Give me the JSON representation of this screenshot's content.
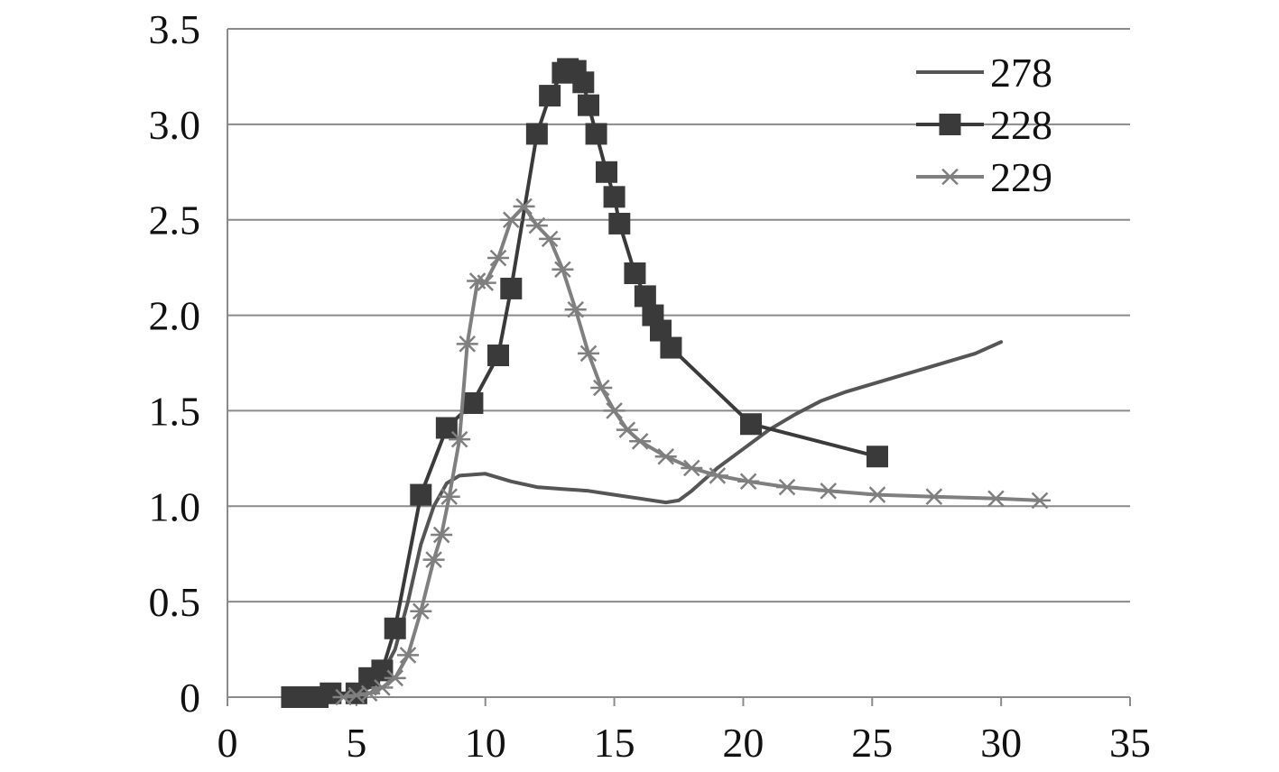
{
  "chart_data": {
    "type": "line",
    "title": "",
    "xlabel": "",
    "ylabel": "",
    "xlim": [
      0,
      35
    ],
    "ylim": [
      0,
      3.5
    ],
    "x_ticks": [
      "0",
      "5",
      "10",
      "15",
      "20",
      "25",
      "30",
      "35"
    ],
    "y_ticks": [
      "0",
      "0.5",
      "1.0",
      "1.5",
      "2.0",
      "2.5",
      "3.0",
      "3.5"
    ],
    "grid": "horizontal",
    "legend_position": "top-right",
    "series": [
      {
        "name": "278",
        "color": "#555555",
        "marker": "none",
        "points": [
          [
            2.5,
            0
          ],
          [
            3.5,
            0
          ],
          [
            4.5,
            0.01
          ],
          [
            5.5,
            0.05
          ],
          [
            6,
            0.12
          ],
          [
            6.5,
            0.25
          ],
          [
            7,
            0.5
          ],
          [
            7.5,
            0.8
          ],
          [
            8,
            1.0
          ],
          [
            8.5,
            1.12
          ],
          [
            9,
            1.16
          ],
          [
            10,
            1.17
          ],
          [
            11,
            1.13
          ],
          [
            12,
            1.1
          ],
          [
            13,
            1.09
          ],
          [
            14,
            1.08
          ],
          [
            15,
            1.06
          ],
          [
            16,
            1.04
          ],
          [
            17,
            1.02
          ],
          [
            17.5,
            1.03
          ],
          [
            18,
            1.08
          ],
          [
            19,
            1.2
          ],
          [
            20,
            1.3
          ],
          [
            21,
            1.4
          ],
          [
            22,
            1.48
          ],
          [
            23,
            1.55
          ],
          [
            24,
            1.6
          ],
          [
            25,
            1.64
          ],
          [
            26,
            1.68
          ],
          [
            27,
            1.72
          ],
          [
            28,
            1.76
          ],
          [
            29,
            1.8
          ],
          [
            30,
            1.86
          ]
        ]
      },
      {
        "name": "228",
        "color": "#3a3a3a",
        "marker": "square",
        "points": [
          [
            2.5,
            0
          ],
          [
            3,
            0
          ],
          [
            3.5,
            0
          ],
          [
            4,
            0.02
          ],
          [
            5,
            0.02
          ],
          [
            5.5,
            0.1
          ],
          [
            6,
            0.14
          ],
          [
            6.5,
            0.36
          ],
          [
            7.5,
            1.06
          ],
          [
            8.5,
            1.41
          ],
          [
            9.5,
            1.54
          ],
          [
            10.5,
            1.79
          ],
          [
            11,
            2.14
          ],
          [
            12,
            2.95
          ],
          [
            12.5,
            3.15
          ],
          [
            13,
            3.27
          ],
          [
            13.2,
            3.29
          ],
          [
            13.5,
            3.28
          ],
          [
            13.8,
            3.22
          ],
          [
            14,
            3.1
          ],
          [
            14.3,
            2.95
          ],
          [
            14.7,
            2.75
          ],
          [
            15,
            2.62
          ],
          [
            15.2,
            2.48
          ],
          [
            15.8,
            2.22
          ],
          [
            16.2,
            2.1
          ],
          [
            16.5,
            2.0
          ],
          [
            16.8,
            1.92
          ],
          [
            17.2,
            1.83
          ],
          [
            20.3,
            1.43
          ],
          [
            25.2,
            1.26
          ]
        ]
      },
      {
        "name": "229",
        "color": "#7f7f7f",
        "marker": "asterisk",
        "points": [
          [
            4.5,
            0
          ],
          [
            5,
            0.01
          ],
          [
            5.5,
            0.02
          ],
          [
            6,
            0.05
          ],
          [
            6.5,
            0.1
          ],
          [
            7,
            0.22
          ],
          [
            7.5,
            0.45
          ],
          [
            8,
            0.72
          ],
          [
            8.3,
            0.85
          ],
          [
            8.6,
            1.05
          ],
          [
            9,
            1.35
          ],
          [
            9.3,
            1.85
          ],
          [
            9.7,
            2.18
          ],
          [
            10,
            2.17
          ],
          [
            10.5,
            2.3
          ],
          [
            11,
            2.5
          ],
          [
            11.5,
            2.57
          ],
          [
            12,
            2.47
          ],
          [
            12.5,
            2.4
          ],
          [
            13,
            2.24
          ],
          [
            13.5,
            2.03
          ],
          [
            14,
            1.8
          ],
          [
            14.5,
            1.62
          ],
          [
            15,
            1.5
          ],
          [
            15.5,
            1.4
          ],
          [
            16,
            1.34
          ],
          [
            17,
            1.26
          ],
          [
            18,
            1.2
          ],
          [
            19,
            1.16
          ],
          [
            20.2,
            1.13
          ],
          [
            21.7,
            1.1
          ],
          [
            23.3,
            1.08
          ],
          [
            25.2,
            1.06
          ],
          [
            27.4,
            1.05
          ],
          [
            29.8,
            1.04
          ],
          [
            31.5,
            1.03
          ]
        ]
      }
    ]
  }
}
